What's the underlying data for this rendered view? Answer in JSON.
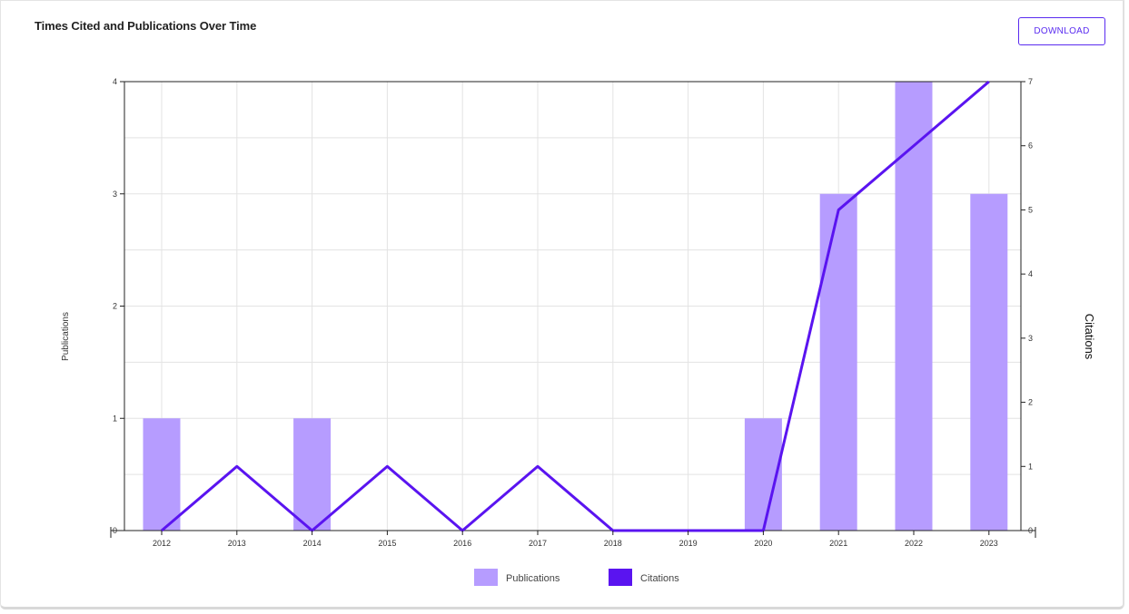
{
  "card": {
    "title": "Times Cited and Publications Over Time",
    "download_label": "DOWNLOAD"
  },
  "chart_data": {
    "type": "bar",
    "categories": [
      "2012",
      "2013",
      "2014",
      "2015",
      "2016",
      "2017",
      "2018",
      "2019",
      "2020",
      "2021",
      "2022",
      "2023"
    ],
    "series": [
      {
        "name": "Publications",
        "type": "bar",
        "axis": "left",
        "values": [
          1,
          0,
          1,
          0,
          0,
          0,
          0,
          0,
          1,
          3,
          4,
          3
        ],
        "color": "#b69cff"
      },
      {
        "name": "Citations",
        "type": "line",
        "axis": "right",
        "values": [
          0,
          1,
          0,
          1,
          0,
          1,
          0,
          0,
          0,
          5,
          6,
          7
        ],
        "color": "#5a14f0"
      }
    ],
    "ylabel": "Publications",
    "ylabel_right": "Citations",
    "ylim": [
      0,
      4
    ],
    "ylim_right": [
      0,
      7
    ],
    "yticks": [
      0,
      1,
      2,
      3,
      4
    ],
    "yticks_right": [
      0,
      1,
      2,
      3,
      4,
      5,
      6,
      7
    ],
    "grid": true,
    "legend": "bottom-center"
  }
}
